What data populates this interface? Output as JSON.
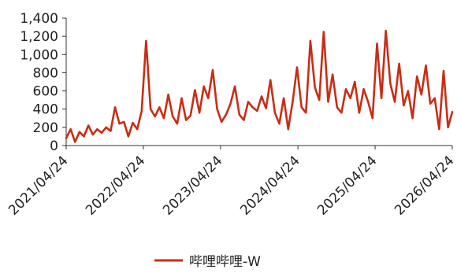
{
  "chart_data": {
    "type": "line",
    "ylim": [
      0,
      1400
    ],
    "yticks": [
      "0",
      "200",
      "400",
      "600",
      "800",
      "1,000",
      "1,200",
      "1,400"
    ],
    "ytick_values": [
      0,
      200,
      400,
      600,
      800,
      1000,
      1200,
      1400
    ],
    "xlim": [
      "2021/04/24",
      "2026/04/24"
    ],
    "xticks": [
      "2021/04/24",
      "2022/04/24",
      "2023/04/24",
      "2024/04/24",
      "2025/04/24",
      "2026/04/24"
    ],
    "grid": false,
    "legend_position": "bottom-center",
    "line_color": "#C82D14",
    "series": [
      {
        "name": "哔哩哔哩-W",
        "x": [
          "2021-04-24",
          "2021-05-15",
          "2021-06-05",
          "2021-06-26",
          "2021-07-17",
          "2021-08-07",
          "2021-08-28",
          "2021-09-18",
          "2021-10-09",
          "2021-10-30",
          "2021-11-20",
          "2021-12-11",
          "2022-01-01",
          "2022-01-22",
          "2022-02-12",
          "2022-03-05",
          "2022-03-26",
          "2022-04-16",
          "2022-05-07",
          "2022-05-28",
          "2022-06-18",
          "2022-07-09",
          "2022-07-30",
          "2022-08-20",
          "2022-09-10",
          "2022-10-01",
          "2022-10-22",
          "2022-11-12",
          "2022-12-03",
          "2022-12-24",
          "2023-01-14",
          "2023-02-04",
          "2023-02-25",
          "2023-03-18",
          "2023-04-08",
          "2023-04-29",
          "2023-05-20",
          "2023-06-10",
          "2023-07-01",
          "2023-07-22",
          "2023-08-12",
          "2023-09-02",
          "2023-09-23",
          "2023-10-14",
          "2023-11-04",
          "2023-11-25",
          "2023-12-16",
          "2024-01-06",
          "2024-01-27",
          "2024-02-17",
          "2024-03-09",
          "2024-03-30",
          "2024-04-20",
          "2024-05-11",
          "2024-06-01",
          "2024-06-22",
          "2024-07-13",
          "2024-08-03",
          "2024-08-24",
          "2024-09-14",
          "2024-10-05",
          "2024-10-26",
          "2024-11-16",
          "2024-12-07",
          "2024-12-28",
          "2025-01-18",
          "2025-02-08",
          "2025-03-01",
          "2025-03-22",
          "2025-04-12",
          "2025-05-03",
          "2025-05-24",
          "2025-06-14",
          "2025-07-05",
          "2025-07-26",
          "2025-08-16",
          "2025-09-06",
          "2025-09-27",
          "2025-10-18",
          "2025-11-08",
          "2025-11-29",
          "2025-12-20",
          "2026-01-10",
          "2026-01-31",
          "2026-02-21",
          "2026-03-14",
          "2026-04-04",
          "2026-04-24"
        ],
        "values": [
          80,
          180,
          40,
          150,
          100,
          220,
          120,
          180,
          140,
          200,
          160,
          420,
          240,
          260,
          100,
          250,
          180,
          380,
          1150,
          400,
          320,
          420,
          300,
          560,
          320,
          240,
          520,
          280,
          330,
          610,
          360,
          650,
          520,
          830,
          400,
          260,
          340,
          460,
          650,
          340,
          280,
          480,
          420,
          380,
          540,
          410,
          720,
          360,
          240,
          520,
          180,
          480,
          860,
          420,
          360,
          1150,
          640,
          500,
          1250,
          480,
          780,
          420,
          360,
          620,
          520,
          700,
          360,
          620,
          480,
          300,
          1120,
          520,
          1260,
          680,
          480,
          900,
          440,
          600,
          300,
          760,
          560,
          880,
          460,
          520,
          180,
          820,
          200,
          370
        ]
      }
    ]
  }
}
